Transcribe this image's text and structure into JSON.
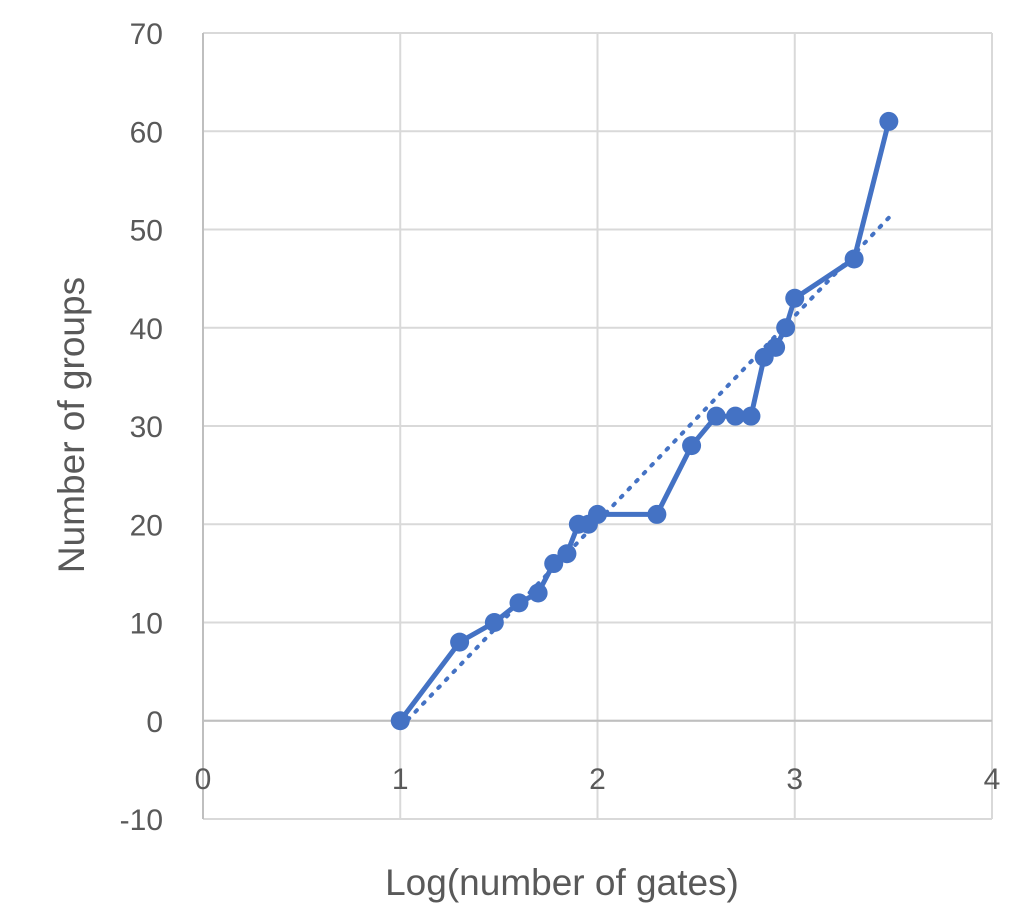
{
  "chart_data": {
    "type": "scatter",
    "title": "",
    "xlabel": "Log(number of gates)",
    "ylabel": "Number of groups",
    "xlim": [
      0,
      4
    ],
    "ylim": [
      -10,
      70
    ],
    "x_ticks": [
      0,
      1,
      2,
      3,
      4
    ],
    "y_ticks": [
      -10,
      0,
      10,
      20,
      30,
      40,
      50,
      60,
      70
    ],
    "grid": true,
    "legend": "none",
    "series": [
      {
        "style": "solid line with circle markers",
        "color": "#4472C4",
        "x": [
          1.0,
          1.301,
          1.477,
          1.602,
          1.699,
          1.778,
          1.845,
          1.903,
          1.954,
          2.0,
          2.301,
          2.477,
          2.602,
          2.699,
          2.778,
          2.845,
          2.903,
          2.954,
          3.0,
          3.301,
          3.477
        ],
        "y": [
          0,
          8,
          10,
          12,
          13,
          16,
          17,
          20,
          20,
          21,
          21,
          28,
          31,
          31,
          31,
          37,
          38,
          40,
          43,
          47,
          61
        ]
      }
    ],
    "trendline": {
      "type": "linear",
      "style": "dotted",
      "color": "#4472C4",
      "x": [
        1.0,
        3.477
      ],
      "y": [
        -0.7,
        51.2
      ]
    }
  }
}
